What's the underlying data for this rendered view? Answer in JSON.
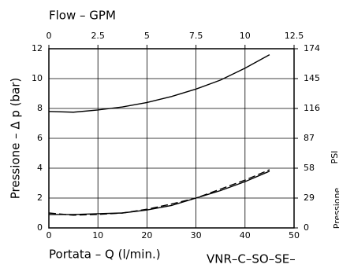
{
  "chart_data": {
    "type": "line",
    "top_axis_label": "Flow – GPM",
    "y_label": "Pressione – Δ p (bar)",
    "x_label": "Portata – Q (l/min.)",
    "y2_label": "PSI",
    "y2_label_2": "Pressione",
    "footer": "VNR–C–SO–SE–",
    "x": [
      0,
      5,
      10,
      15,
      20,
      25,
      30,
      35,
      40,
      45
    ],
    "series": [
      {
        "color": "#000000",
        "dashed": false,
        "values": [
          7.8,
          7.75,
          7.9,
          8.1,
          8.4,
          8.8,
          9.3,
          9.9,
          10.7,
          11.6
        ]
      },
      {
        "color": "#000000",
        "dashed": false,
        "values": [
          0.9,
          0.9,
          0.95,
          1.0,
          1.2,
          1.5,
          2.0,
          2.5,
          3.1,
          3.8
        ]
      },
      {
        "color": "#000000",
        "dashed": true,
        "values": [
          1.0,
          0.85,
          0.9,
          1.0,
          1.25,
          1.6,
          2.0,
          2.6,
          3.2,
          3.9
        ]
      }
    ],
    "xlim": [
      0,
      50
    ],
    "xticks": [
      0,
      10,
      20,
      30,
      40,
      50
    ],
    "x2lim": [
      0,
      12.5
    ],
    "x2ticks": [
      0,
      2.5,
      5,
      7.5,
      10,
      12.5
    ],
    "ylim": [
      0,
      12
    ],
    "yticks": [
      0,
      2,
      4,
      6,
      8,
      10,
      12
    ],
    "y2lim": [
      0,
      174
    ],
    "y2ticks": [
      0,
      29,
      58,
      87,
      116,
      145,
      174
    ],
    "grid": true
  }
}
